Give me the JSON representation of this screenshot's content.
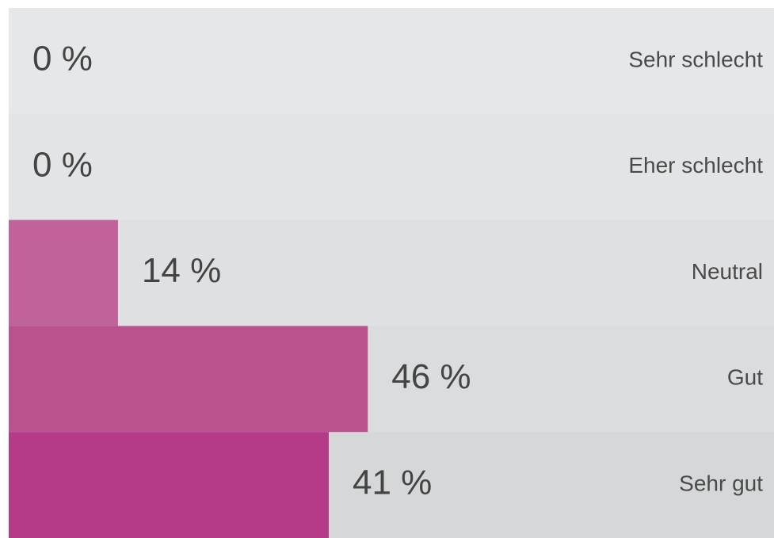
{
  "chart_data": {
    "type": "bar",
    "orientation": "horizontal",
    "categories": [
      "Sehr schlecht",
      "Eher schlecht",
      "Neutral",
      "Gut",
      "Sehr gut"
    ],
    "values": [
      0,
      0,
      14,
      46,
      41
    ],
    "value_labels": [
      "0 %",
      "0 %",
      "14 %",
      "46 %",
      "41 %"
    ],
    "colors": [
      "#c4679f",
      "#c4679f",
      "#c0639d",
      "#bb5290",
      "#b53a88"
    ],
    "xlim": [
      0,
      100
    ]
  }
}
